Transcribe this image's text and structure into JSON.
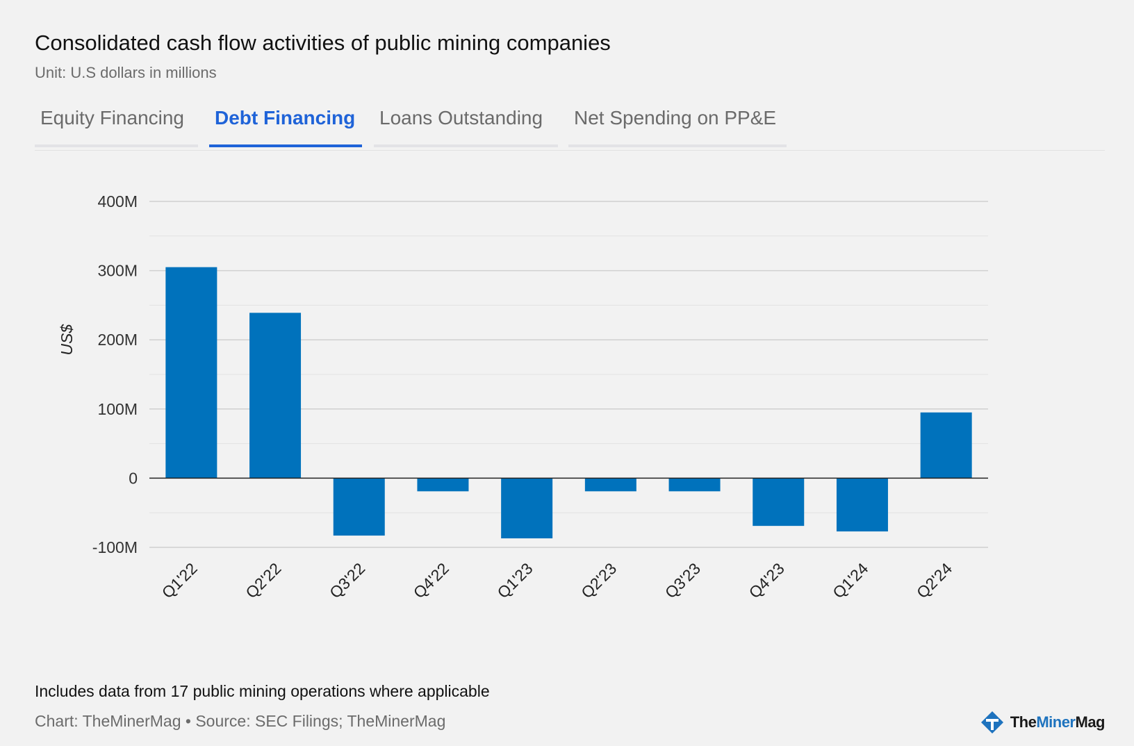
{
  "header": {
    "title": "Consolidated cash flow activities of public mining companies",
    "subtitle": "Unit: U.S dollars in millions"
  },
  "tabs": [
    {
      "label": "Equity Financing",
      "active": false
    },
    {
      "label": "Debt Financing",
      "active": true
    },
    {
      "label": "Loans Outstanding",
      "active": false
    },
    {
      "label": "Net Spending on PP&E",
      "active": false
    }
  ],
  "colors": {
    "bar": "#0072bc",
    "accent": "#1f63d8",
    "grid": "#d0d0d0",
    "zero_line": "#222222"
  },
  "chart_data": {
    "type": "bar",
    "categories": [
      "Q1'22",
      "Q2'22",
      "Q3'22",
      "Q4'22",
      "Q1'23",
      "Q2'23",
      "Q3'23",
      "Q4'23",
      "Q1'24",
      "Q2'24"
    ],
    "values": [
      305,
      239,
      -83,
      -19,
      -87,
      -19,
      -19,
      -69,
      -77,
      95
    ],
    "ylabel": "US$",
    "ylim": [
      -100,
      400
    ],
    "yticks": [
      -100,
      0,
      100,
      200,
      300,
      400
    ],
    "ytick_labels": [
      "-100M",
      "0",
      "100M",
      "200M",
      "300M",
      "400M"
    ],
    "grid": true,
    "minor_grid": true
  },
  "footer": {
    "note": "Includes data from 17 public mining operations where applicable",
    "source": "Chart: TheMinerMag • Source: SEC Filings; TheMinerMag",
    "logo_part1": "The",
    "logo_part2": "Miner",
    "logo_part3": "Mag"
  }
}
